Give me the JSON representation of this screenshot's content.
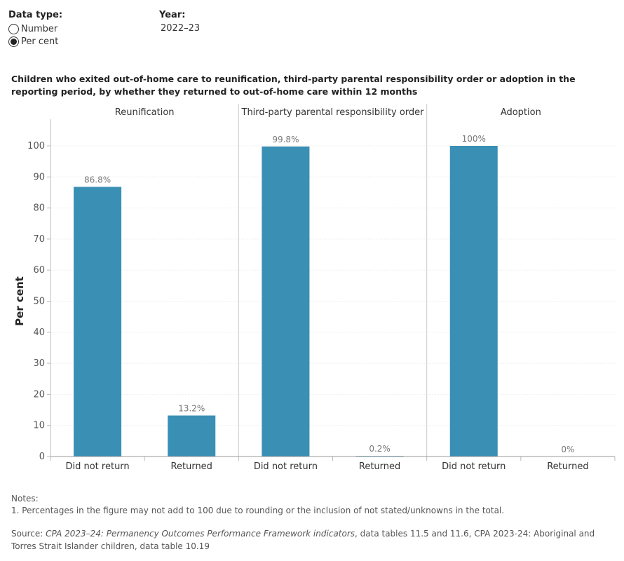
{
  "controls": {
    "data_type_label": "Data type:",
    "data_type_options": [
      "Number",
      "Per cent"
    ],
    "data_type_selected": "Per cent",
    "year_label": "Year:",
    "year_value": "2022–23"
  },
  "chart_data": {
    "type": "bar",
    "title": "Children who exited out-of-home care to reunification, third-party parental responsibility order or adoption in the reporting period, by whether they returned to out-of-home care within 12 months",
    "ylabel": "Per cent",
    "ylim": [
      0,
      100
    ],
    "yticks": [
      0,
      10,
      20,
      30,
      40,
      50,
      60,
      70,
      80,
      90,
      100
    ],
    "panels": [
      {
        "name": "Reunification",
        "categories": [
          "Did not return",
          "Returned"
        ],
        "values": [
          86.8,
          13.2
        ],
        "labels": [
          "86.8%",
          "13.2%"
        ]
      },
      {
        "name": "Third-party parental responsibility order",
        "categories": [
          "Did not return",
          "Returned"
        ],
        "values": [
          99.8,
          0.2
        ],
        "labels": [
          "99.8%",
          "0.2%"
        ]
      },
      {
        "name": "Adoption",
        "categories": [
          "Did not return",
          "Returned"
        ],
        "values": [
          100,
          0
        ],
        "labels": [
          "100%",
          "0%"
        ]
      }
    ],
    "bar_color": "#3a8fb5",
    "grid": true
  },
  "notes": {
    "heading": "Notes:",
    "items": [
      "1. Percentages in the figure may not add to 100 due to rounding or the inclusion of not stated/unknowns in the total."
    ]
  },
  "source": {
    "prefix": "Source: ",
    "italic": "CPA 2023–24: Permanency Outcomes Performance Framework indicators",
    "rest": ", data tables 11.5 and 11.6, CPA 2023-24: Aboriginal and Torres Strait Islander children, data table 10.19"
  }
}
